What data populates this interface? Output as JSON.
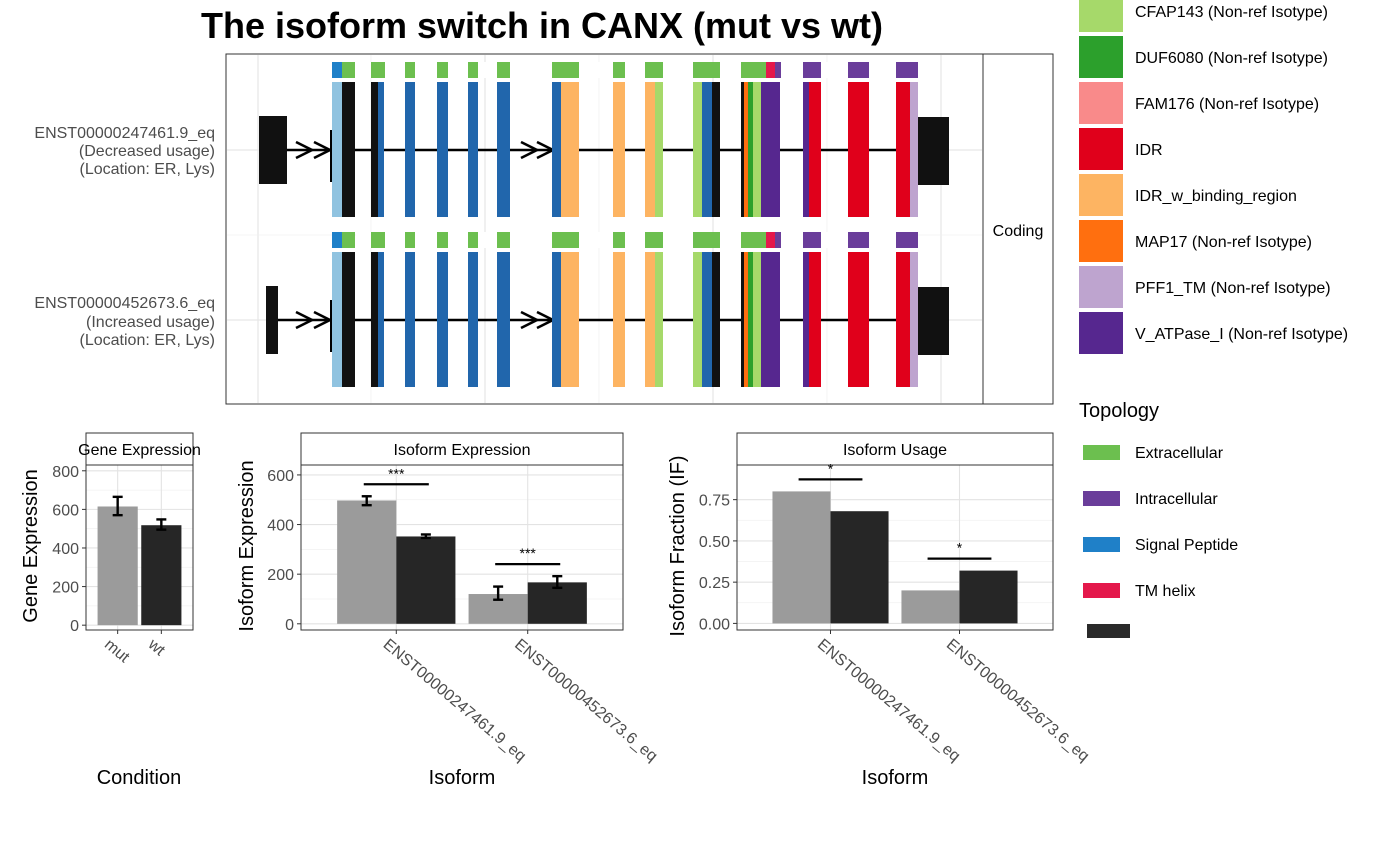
{
  "chart_data": [
    {
      "type": "gene-structure",
      "title": "The isoform switch in CANX (mut vs wt)",
      "facet_label": "Coding",
      "isoforms": [
        {
          "id": "ENST00000247461.9_eq",
          "usage": "(Decreased usage)",
          "location": "(Location: ER, Lys)"
        },
        {
          "id": "ENST00000452673.6_eq",
          "usage": "(Increased usage)",
          "location": "(Location: ER, Lys)"
        }
      ],
      "legend_domains": [
        {
          "label": "CFAP143 (Non-ref Isotype)",
          "color": "#a6d96a"
        },
        {
          "label": "DUF6080 (Non-ref Isotype)",
          "color": "#2ca02c"
        },
        {
          "label": "FAM176 (Non-ref Isotype)",
          "color": "#f98a8a"
        },
        {
          "label": "IDR",
          "color": "#e0001b"
        },
        {
          "label": "IDR_w_binding_region",
          "color": "#fdb462"
        },
        {
          "label": "MAP17 (Non-ref Isotype)",
          "color": "#ff6f0f"
        },
        {
          "label": "PFF1_TM (Non-ref Isotype)",
          "color": "#bea4cf"
        },
        {
          "label": "V_ATPase_I (Non-ref Isotype)",
          "color": "#56278f"
        }
      ],
      "legend_topology": {
        "title": "Topology",
        "items": [
          {
            "label": "Extracellular",
            "color": "#6cbf4f"
          },
          {
            "label": "Intracellular",
            "color": "#6a3d9a"
          },
          {
            "label": "Signal Peptide",
            "color": "#1f80c8"
          },
          {
            "label": "TM helix",
            "color": "#e4184b"
          },
          {
            "label": "",
            "color": "#2a2a2a"
          }
        ]
      }
    },
    {
      "type": "bar",
      "facet": "Gene Expression",
      "categories": [
        "mut",
        "wt"
      ],
      "values": [
        615,
        518
      ],
      "errors": [
        [
          570,
          665
        ],
        [
          495,
          548
        ]
      ],
      "colors": [
        "#9b9b9b",
        "#262626"
      ],
      "xlabel": "Condition",
      "ylabel": "Gene Expression",
      "ylim": [
        -25,
        830
      ],
      "yticks": [
        0,
        200,
        400,
        600,
        800
      ]
    },
    {
      "type": "bar",
      "facet": "Isoform Expression",
      "categories": [
        "ENST00000247461.9_eq",
        "ENST00000452673.6_eq"
      ],
      "series": [
        {
          "condition": "mut",
          "values": [
            497,
            120
          ],
          "errors": [
            [
              478,
              514
            ],
            [
              97,
              150
            ]
          ],
          "color": "#9b9b9b"
        },
        {
          "condition": "wt",
          "values": [
            352,
            167
          ],
          "errors": [
            [
              346,
              360
            ],
            [
              145,
              192
            ]
          ],
          "color": "#262626"
        }
      ],
      "significance": [
        "***",
        "***"
      ],
      "xlabel": "Isoform",
      "ylabel": "Isoform Expression",
      "ylim": [
        -25,
        640
      ],
      "yticks": [
        0,
        200,
        400,
        600
      ]
    },
    {
      "type": "bar",
      "facet": "Isoform Usage",
      "categories": [
        "ENST00000247461.9_eq",
        "ENST00000452673.6_eq"
      ],
      "series": [
        {
          "condition": "mut",
          "values": [
            0.8,
            0.2
          ],
          "color": "#9b9b9b"
        },
        {
          "condition": "wt",
          "values": [
            0.68,
            0.32
          ],
          "color": "#262626"
        }
      ],
      "significance": [
        "*",
        "*"
      ],
      "xlabel": "Isoform",
      "ylabel": "Isoform Fraction (IF)",
      "ylim": [
        -0.04,
        0.96
      ],
      "yticks": [
        "0.00",
        "0.25",
        "0.50",
        "0.75"
      ]
    }
  ]
}
